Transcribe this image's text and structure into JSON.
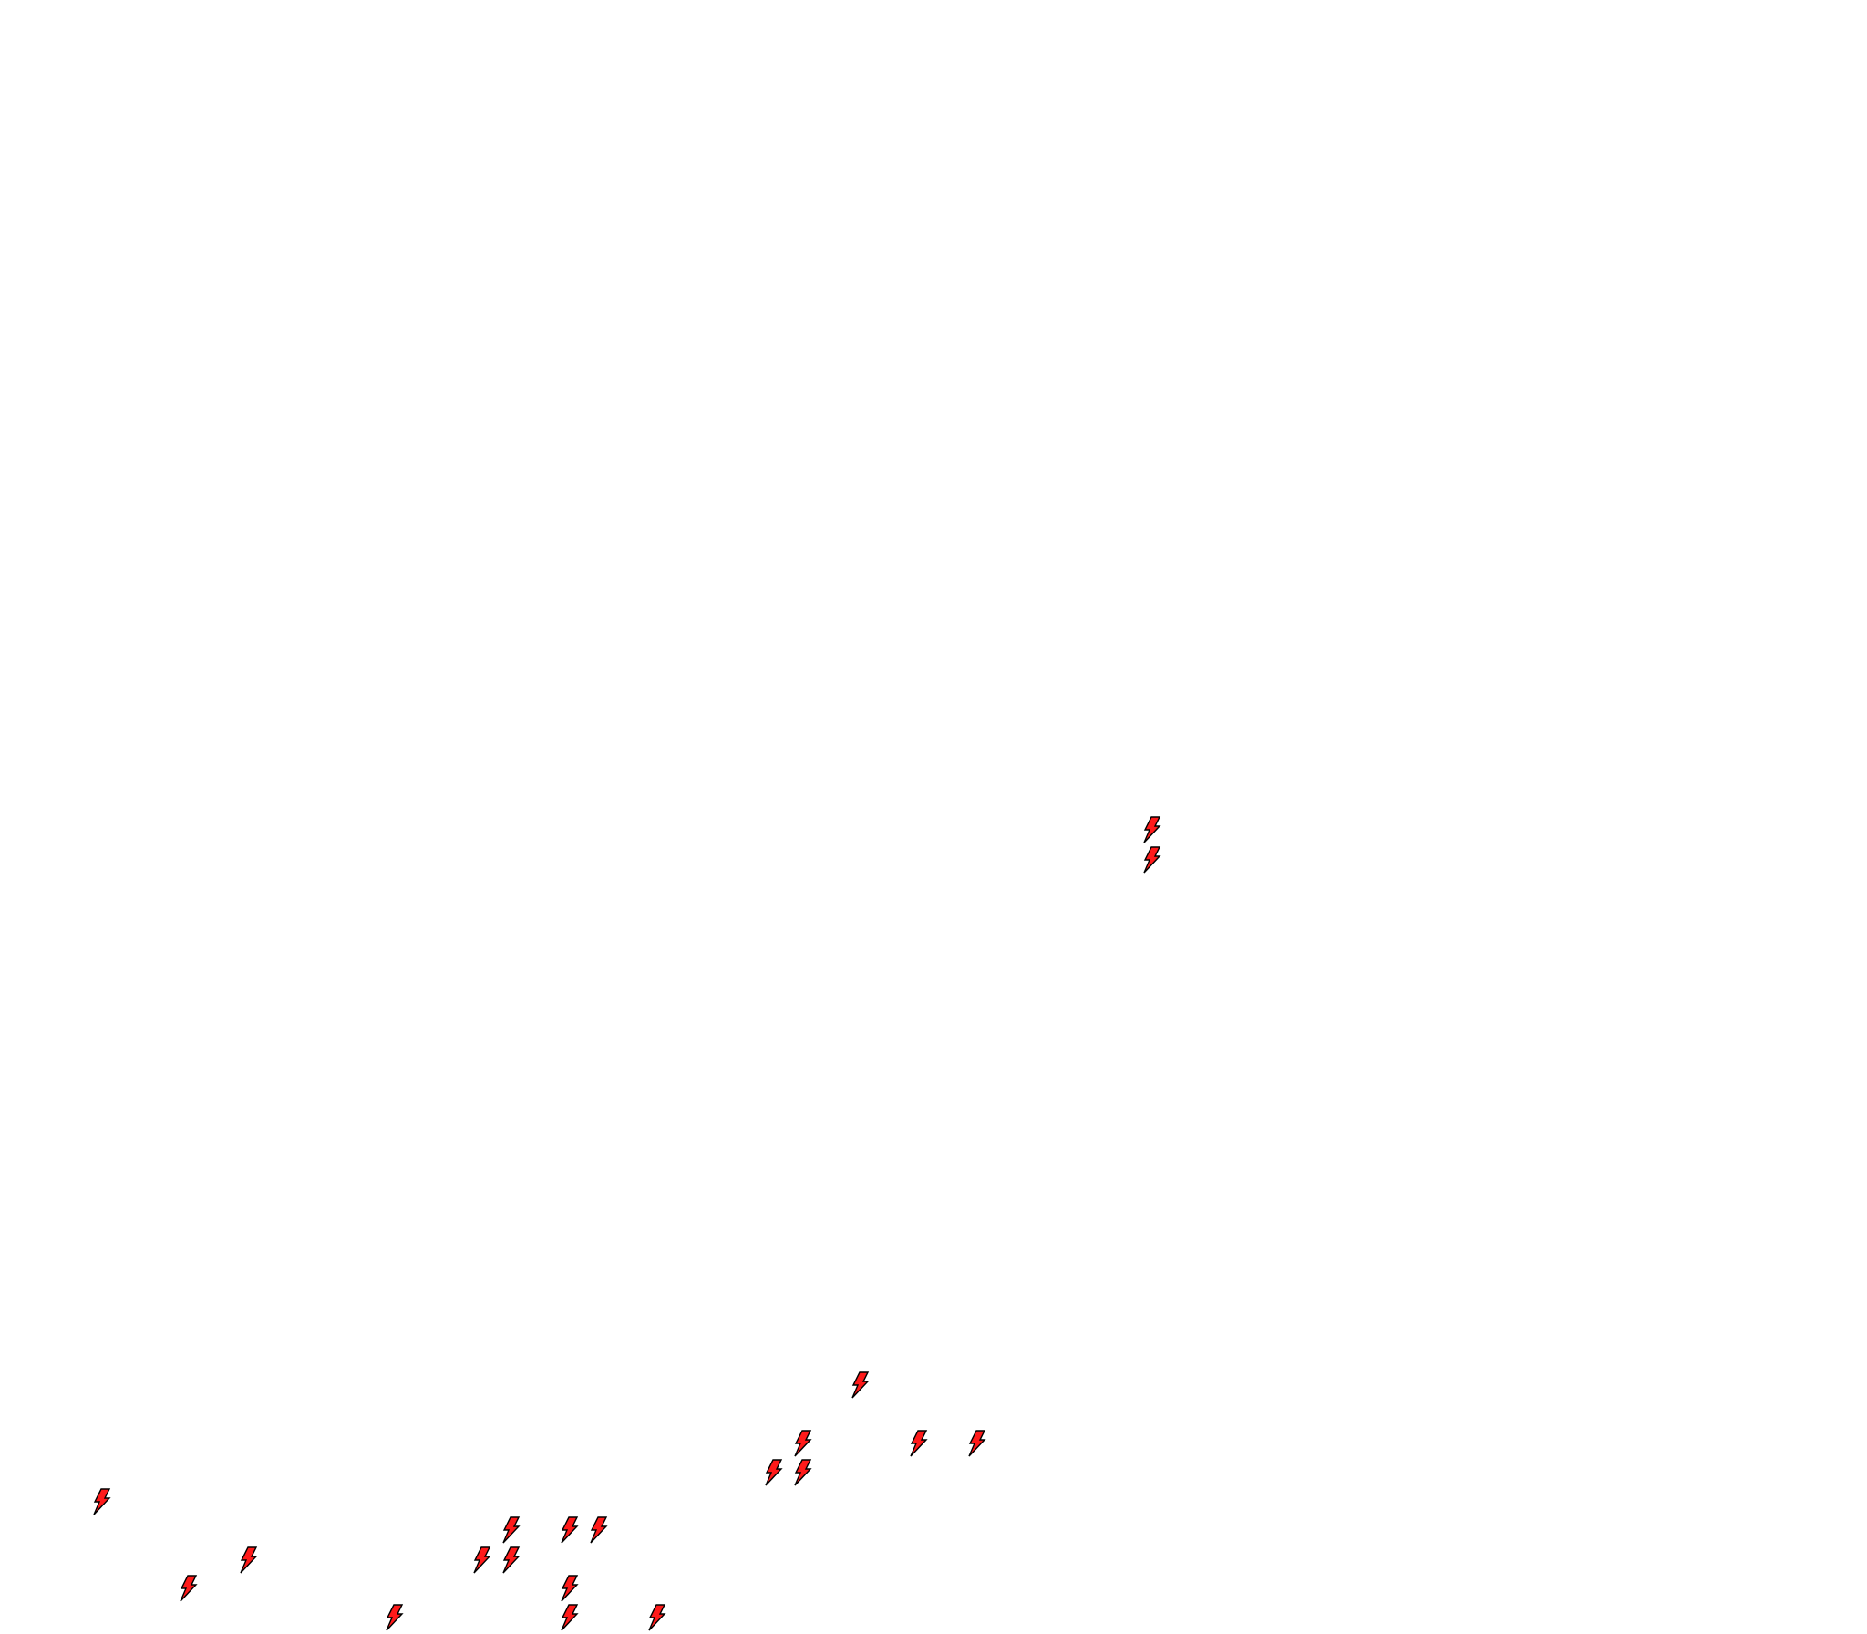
{
  "map": {
    "background_color": "#ffffff",
    "marker_icon": "lightning-bolt-icon",
    "marker_fill_color": "#ff1a1a",
    "marker_stroke_color": "#000000",
    "marker_count": 20
  }
}
